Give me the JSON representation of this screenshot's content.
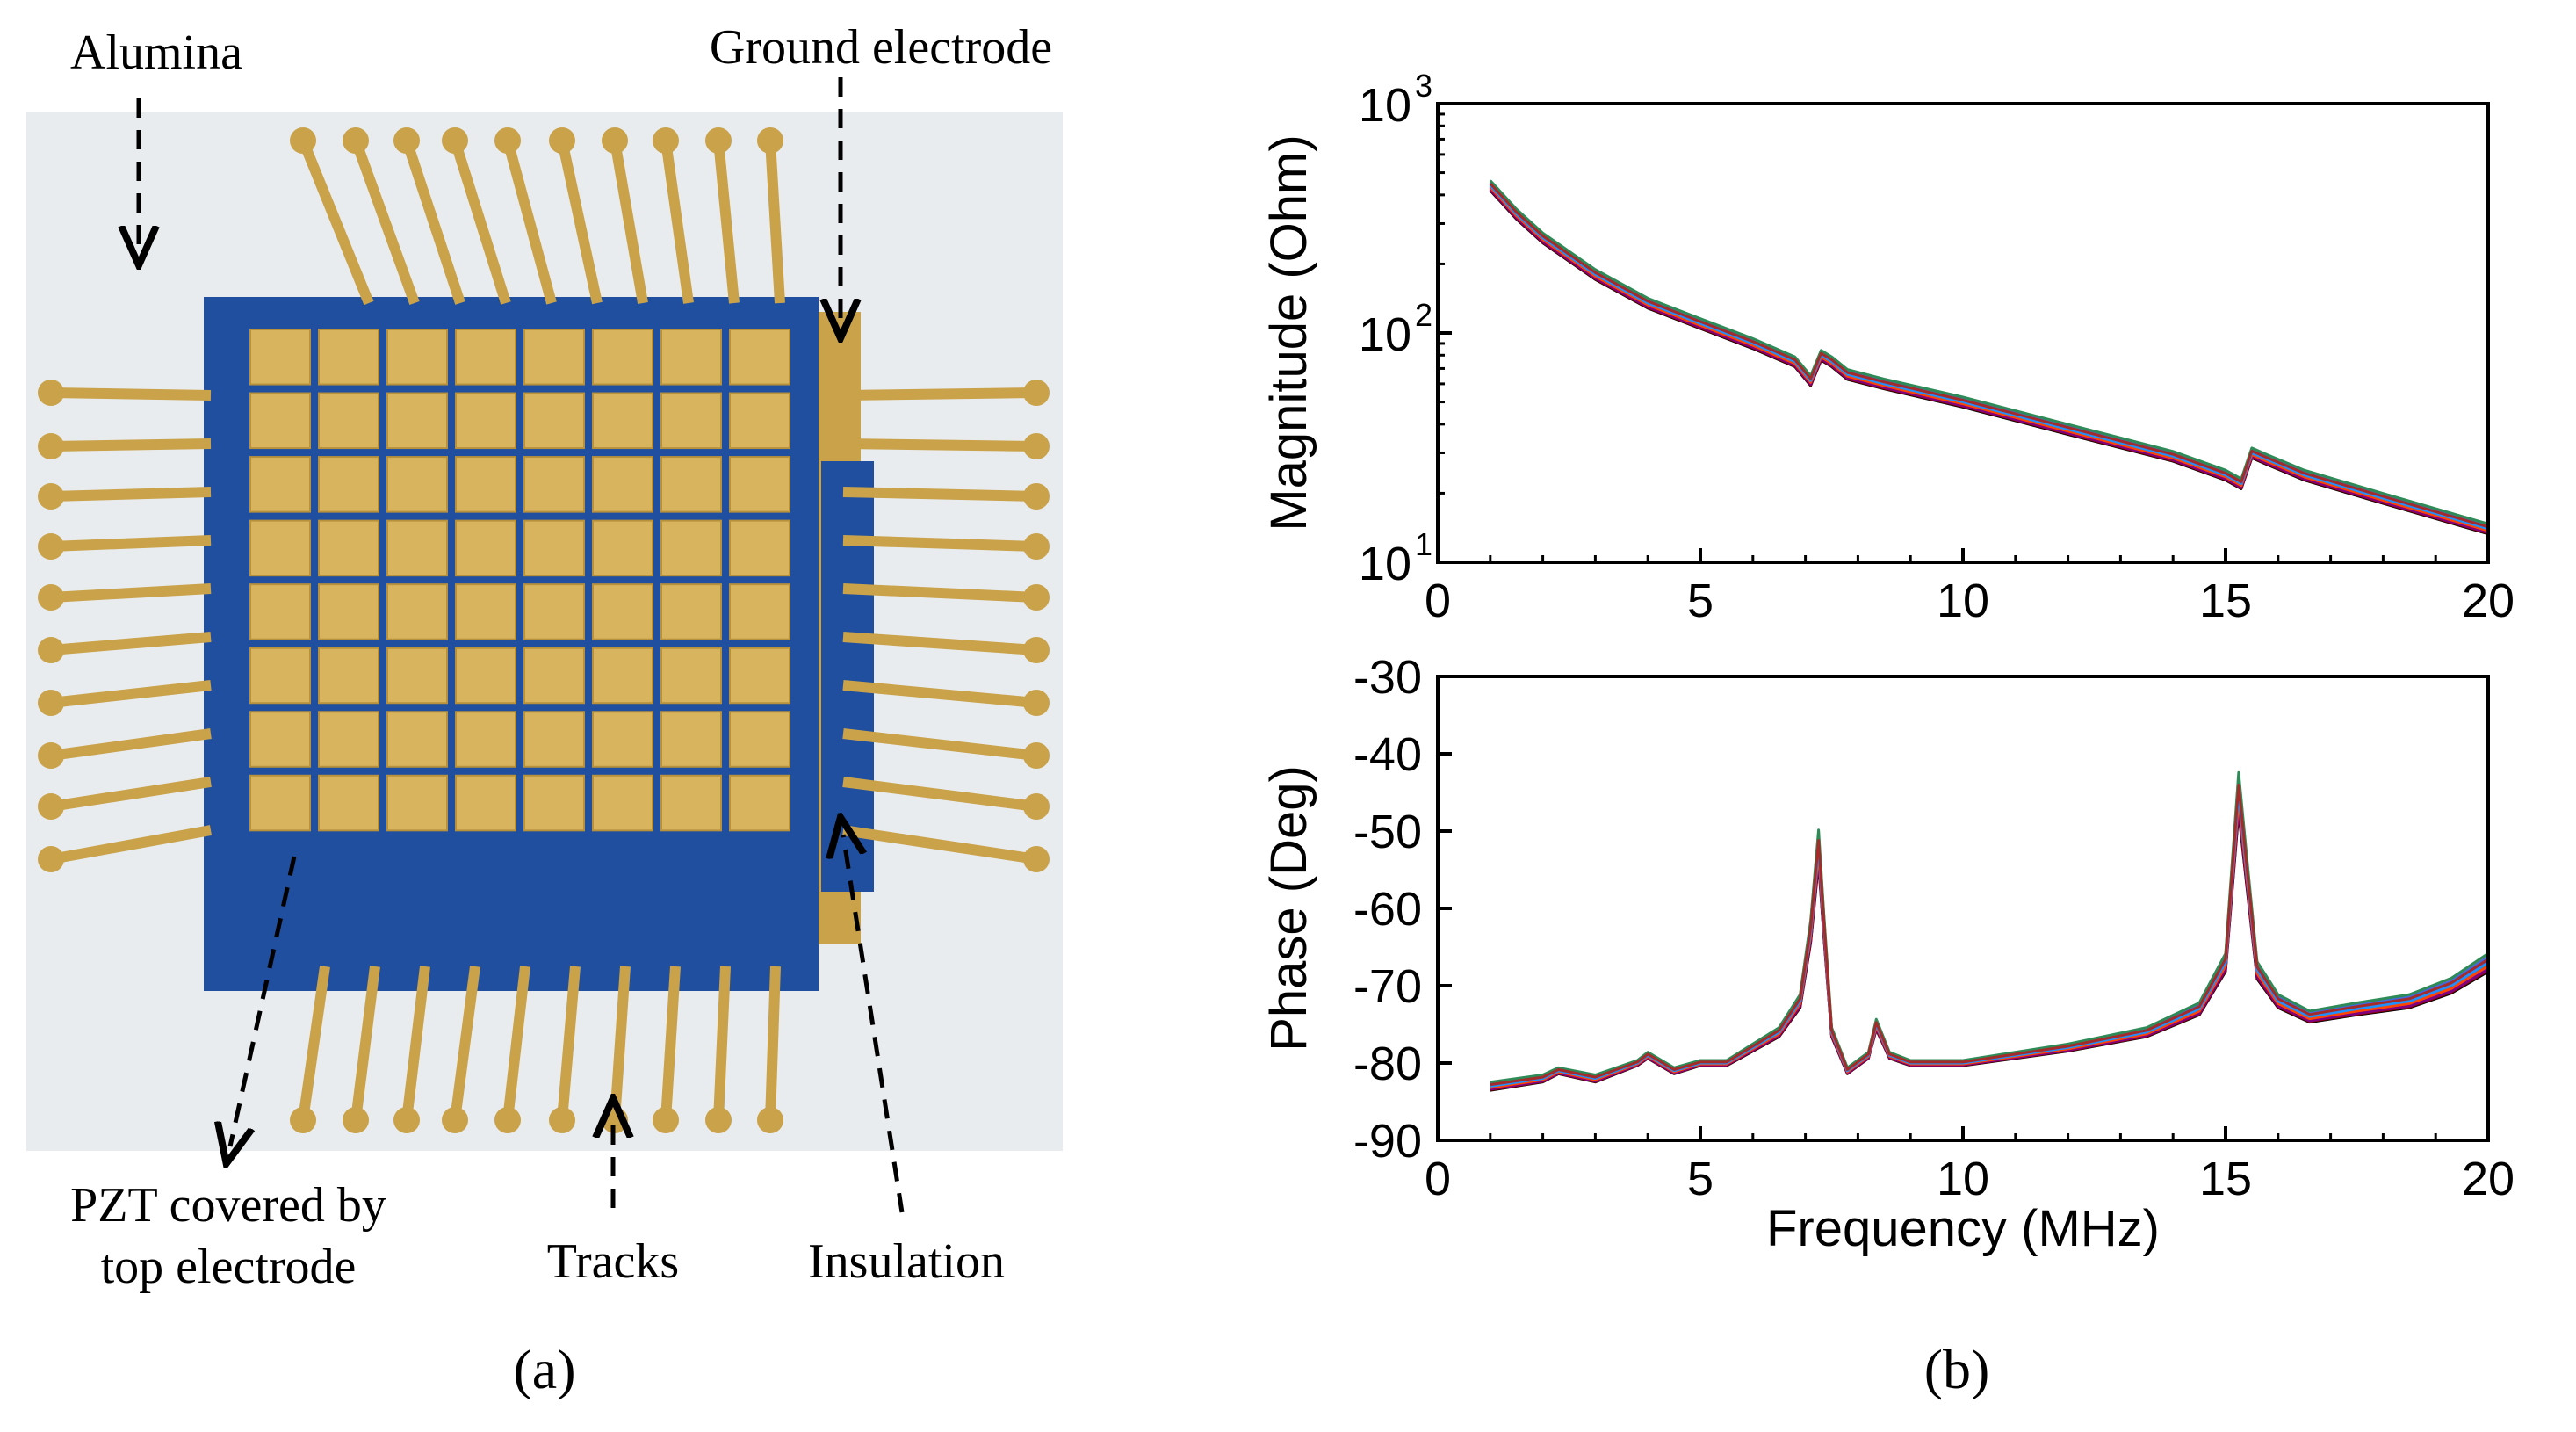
{
  "panel_a": {
    "caption": "(a)",
    "labels": {
      "alumina": "Alumina",
      "ground_electrode": "Ground electrode",
      "pzt_line1": "PZT covered by",
      "pzt_line2": "top electrode",
      "tracks": "Tracks",
      "insulation": "Insulation"
    },
    "colors": {
      "alumina": "#e9ecef",
      "gold": "#c9a24a",
      "gold_light": "#d8b45e",
      "insulation": "#1f4f9e"
    },
    "array_grid": "8x8"
  },
  "panel_b": {
    "caption": "(b)",
    "chart_data": [
      {
        "type": "line",
        "title": "",
        "xlabel": "",
        "ylabel": "Magnitude (Ohm)",
        "yscale": "log",
        "xlim": [
          0,
          20
        ],
        "ylim": [
          10,
          1000
        ],
        "x_ticks": [
          "0",
          "5",
          "10",
          "15",
          "20"
        ],
        "y_ticks": [
          {
            "base": "10",
            "exp": "1"
          },
          {
            "base": "10",
            "exp": "2"
          },
          {
            "base": "10",
            "exp": "3"
          }
        ],
        "series_count": 16,
        "x": [
          1.0,
          1.5,
          2.0,
          3.0,
          4.0,
          5.0,
          6.0,
          6.8,
          7.1,
          7.3,
          7.5,
          7.8,
          8.5,
          10.0,
          12.0,
          14.0,
          15.0,
          15.3,
          15.5,
          15.8,
          16.5,
          18.0,
          20.0
        ],
        "values": [
          440,
          330,
          260,
          180,
          135,
          110,
          90,
          75,
          62,
          80,
          75,
          66,
          60,
          50,
          38,
          29,
          24,
          22,
          30,
          28,
          24,
          19,
          14
        ]
      },
      {
        "type": "line",
        "title": "",
        "xlabel": "Frequency (MHz)",
        "ylabel": "Phase (Deg)",
        "xlim": [
          0,
          20
        ],
        "ylim": [
          -90,
          -30
        ],
        "x_ticks": [
          "0",
          "5",
          "10",
          "15",
          "20"
        ],
        "y_ticks": [
          "-30",
          "-40",
          "-50",
          "-60",
          "-70",
          "-80",
          "-90"
        ],
        "series_count": 16,
        "x": [
          1.0,
          2.0,
          2.3,
          3.0,
          3.8,
          4.0,
          4.5,
          5.0,
          5.5,
          6.0,
          6.5,
          6.9,
          7.1,
          7.25,
          7.35,
          7.5,
          7.8,
          8.2,
          8.35,
          8.6,
          9.0,
          10.0,
          12.0,
          13.5,
          14.5,
          15.0,
          15.25,
          15.4,
          15.6,
          16.0,
          16.6,
          17.5,
          18.5,
          19.3,
          20.0
        ],
        "values": [
          -83,
          -82,
          -81,
          -82,
          -80,
          -79,
          -81,
          -80,
          -80,
          -78,
          -76,
          -72,
          -63,
          -52,
          -62,
          -76,
          -81,
          -79,
          -75,
          -79,
          -80,
          -80,
          -78,
          -76,
          -73,
          -67,
          -45,
          -55,
          -68,
          -72,
          -74,
          -73,
          -72,
          -70,
          -67
        ]
      }
    ]
  }
}
